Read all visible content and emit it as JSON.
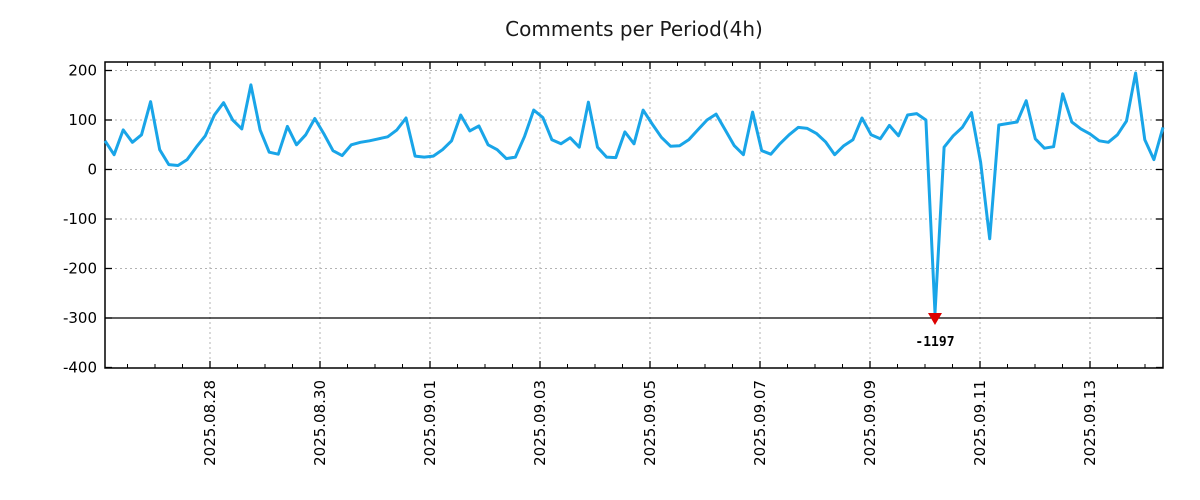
{
  "page": {
    "background": "#ffffff"
  },
  "chart_data": {
    "type": "line",
    "title": "Comments per Period(4h)",
    "x_start": "2025.08.26 02:00",
    "x_interval_hours": 4,
    "x_tick_labels": [
      "2025.08.28",
      "2025.08.30",
      "2025.09.01",
      "2025.09.03",
      "2025.09.05",
      "2025.09.07",
      "2025.09.09",
      "2025.09.11",
      "2025.09.13"
    ],
    "y_ticks": [
      200,
      100,
      0,
      -100,
      -200,
      -300,
      -400
    ],
    "ylim": [
      -400,
      217
    ],
    "grid": {
      "horizontal_dashed_at": [
        200,
        100,
        0,
        -100,
        -200
      ],
      "vertical_dashed_at_major_ticks": true,
      "grid_color": "#b3b3b3"
    },
    "baseline": {
      "value": -300,
      "style": "solid",
      "color": "#000000"
    },
    "series": [
      {
        "name": "comments",
        "color": "#19a5e8",
        "line_width": 3,
        "values": [
          58,
          30,
          80,
          55,
          70,
          137,
          40,
          10,
          8,
          20,
          45,
          68,
          110,
          135,
          100,
          82,
          171,
          80,
          35,
          31,
          87,
          50,
          70,
          103,
          72,
          38,
          28,
          50,
          55,
          58,
          62,
          66,
          80,
          104,
          27,
          25,
          27,
          40,
          58,
          110,
          78,
          88,
          50,
          40,
          22,
          25,
          67,
          120,
          105,
          60,
          52,
          64,
          45,
          136,
          45,
          25,
          24,
          76,
          52,
          120,
          92,
          65,
          47,
          48,
          60,
          80,
          100,
          112,
          80,
          48,
          30,
          116,
          38,
          31,
          52,
          70,
          85,
          83,
          73,
          56,
          30,
          48,
          60,
          104,
          70,
          62,
          89,
          68,
          110,
          113,
          100,
          -1197,
          45,
          68,
          85,
          115,
          15,
          -140,
          90,
          93,
          96,
          139,
          62,
          43,
          46,
          153,
          96,
          82,
          72,
          58,
          55,
          70,
          98,
          195,
          60,
          20,
          85
        ]
      }
    ],
    "clip": {
      "drawn_floor": -290
    },
    "annotation": {
      "point_index": 91,
      "text": "-1197",
      "text_color": "#19a5e8",
      "marker": "triangle-down",
      "marker_color": "#dd0000",
      "marker_value": -300
    }
  }
}
